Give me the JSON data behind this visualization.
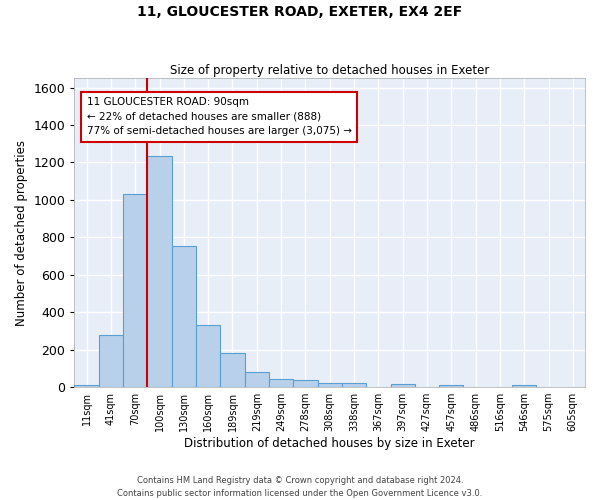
{
  "title": "11, GLOUCESTER ROAD, EXETER, EX4 2EF",
  "subtitle": "Size of property relative to detached houses in Exeter",
  "xlabel": "Distribution of detached houses by size in Exeter",
  "ylabel": "Number of detached properties",
  "footer_line1": "Contains HM Land Registry data © Crown copyright and database right 2024.",
  "footer_line2": "Contains public sector information licensed under the Open Government Licence v3.0.",
  "annotation_line1": "11 GLOUCESTER ROAD: 90sqm",
  "annotation_line2": "← 22% of detached houses are smaller (888)",
  "annotation_line3": "77% of semi-detached houses are larger (3,075) →",
  "bar_color": "#b8d0ea",
  "bar_edge_color": "#5a9fd4",
  "property_line_color": "#cc0000",
  "annotation_box_edge_color": "#cc0000",
  "background_color": "#e8eef8",
  "grid_color": "#ffffff",
  "bin_labels": [
    "11sqm",
    "41sqm",
    "70sqm",
    "100sqm",
    "130sqm",
    "160sqm",
    "189sqm",
    "219sqm",
    "249sqm",
    "278sqm",
    "308sqm",
    "338sqm",
    "367sqm",
    "397sqm",
    "427sqm",
    "457sqm",
    "486sqm",
    "516sqm",
    "546sqm",
    "575sqm",
    "605sqm"
  ],
  "bar_values": [
    10,
    280,
    1030,
    1235,
    755,
    330,
    180,
    80,
    45,
    38,
    20,
    20,
    0,
    18,
    0,
    12,
    0,
    0,
    12,
    0,
    0
  ],
  "property_line_x": 2.5,
  "ylim": [
    0,
    1650
  ],
  "yticks": [
    0,
    200,
    400,
    600,
    800,
    1000,
    1200,
    1400,
    1600
  ],
  "figsize": [
    6.0,
    5.0
  ],
  "dpi": 100
}
